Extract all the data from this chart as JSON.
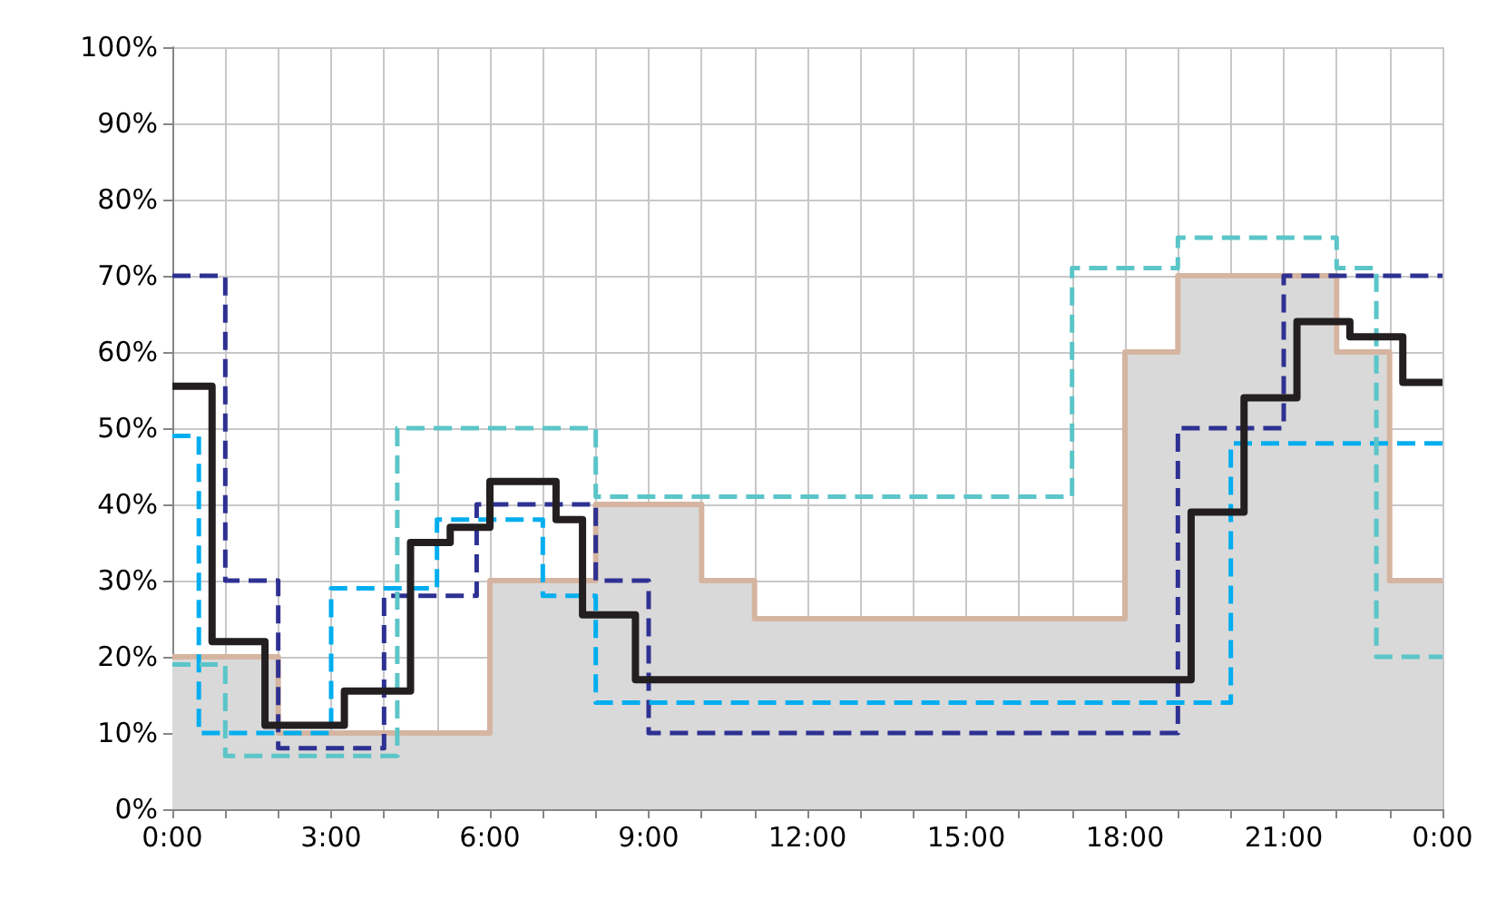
{
  "chart_data": {
    "type": "step",
    "xlim": [
      0,
      24
    ],
    "xticks": [
      {
        "value": 0,
        "label": "0:00"
      },
      {
        "value": 1,
        "label": null
      },
      {
        "value": 2,
        "label": null
      },
      {
        "value": 3,
        "label": "3:00"
      },
      {
        "value": 4,
        "label": null
      },
      {
        "value": 5,
        "label": null
      },
      {
        "value": 6,
        "label": "6:00"
      },
      {
        "value": 7,
        "label": null
      },
      {
        "value": 8,
        "label": null
      },
      {
        "value": 9,
        "label": "9:00"
      },
      {
        "value": 10,
        "label": null
      },
      {
        "value": 11,
        "label": null
      },
      {
        "value": 12,
        "label": "12:00"
      },
      {
        "value": 13,
        "label": null
      },
      {
        "value": 14,
        "label": null
      },
      {
        "value": 15,
        "label": "15:00"
      },
      {
        "value": 16,
        "label": null
      },
      {
        "value": 17,
        "label": null
      },
      {
        "value": 18,
        "label": "18:00"
      },
      {
        "value": 19,
        "label": null
      },
      {
        "value": 20,
        "label": null
      },
      {
        "value": 21,
        "label": "21:00"
      },
      {
        "value": 22,
        "label": null
      },
      {
        "value": 23,
        "label": null
      },
      {
        "value": 24,
        "label": "0:00"
      }
    ],
    "ylim": [
      0,
      100
    ],
    "yticks": [
      {
        "value": 0,
        "label": "0%"
      },
      {
        "value": 10,
        "label": "10%"
      },
      {
        "value": 20,
        "label": "20%"
      },
      {
        "value": 30,
        "label": "30%"
      },
      {
        "value": 40,
        "label": "40%"
      },
      {
        "value": 50,
        "label": "50%"
      },
      {
        "value": 60,
        "label": "60%"
      },
      {
        "value": 70,
        "label": "70%"
      },
      {
        "value": 80,
        "label": "80%"
      },
      {
        "value": 90,
        "label": "90%"
      },
      {
        "value": 100,
        "label": "100%"
      }
    ],
    "grid": true,
    "series": [
      {
        "type": "area",
        "color": "#d9d9d9",
        "x": [
          0,
          2,
          6,
          8,
          10,
          11,
          18,
          19,
          22,
          23,
          24
        ],
        "values": [
          20,
          10,
          30,
          40,
          30,
          25,
          60,
          70,
          60,
          30,
          30
        ]
      },
      {
        "color": "#d5b5a1",
        "line_style": "solid",
        "x": [
          0,
          2,
          6,
          8,
          10,
          11,
          18,
          19,
          22,
          23,
          24
        ],
        "values": [
          20,
          10,
          30,
          40,
          30,
          25,
          60,
          70,
          60,
          30,
          30
        ]
      },
      {
        "color": "#2e3192",
        "line_style": "dashed",
        "x": [
          0,
          1,
          2,
          4,
          5.75,
          8,
          9,
          19,
          21,
          24
        ],
        "values": [
          70,
          30,
          8,
          28,
          40,
          30,
          10,
          50,
          70,
          70
        ]
      },
      {
        "color": "#00aeef",
        "line_style": "dashed",
        "x": [
          0,
          0.5,
          3,
          5,
          7,
          8,
          20,
          24
        ],
        "values": [
          49,
          10,
          29,
          38,
          28,
          14,
          48,
          48
        ]
      },
      {
        "color": "#5bc5c8",
        "line_style": "dashed",
        "x": [
          0,
          1,
          4.25,
          8,
          17,
          19,
          22,
          22.75,
          24
        ],
        "values": [
          19,
          7,
          50,
          41,
          71,
          75,
          71,
          20,
          20
        ]
      },
      {
        "color": "#231f20",
        "line_style": "solid",
        "x": [
          0,
          0.75,
          1.75,
          3.25,
          4.5,
          5.25,
          6,
          7.25,
          7.75,
          8.75,
          19.25,
          20.25,
          21.25,
          22.25,
          23.25,
          24
        ],
        "values": [
          55.5,
          22,
          11,
          15.5,
          35,
          37,
          43,
          38,
          25.5,
          17,
          39,
          54,
          64,
          62,
          56,
          56
        ]
      }
    ]
  }
}
